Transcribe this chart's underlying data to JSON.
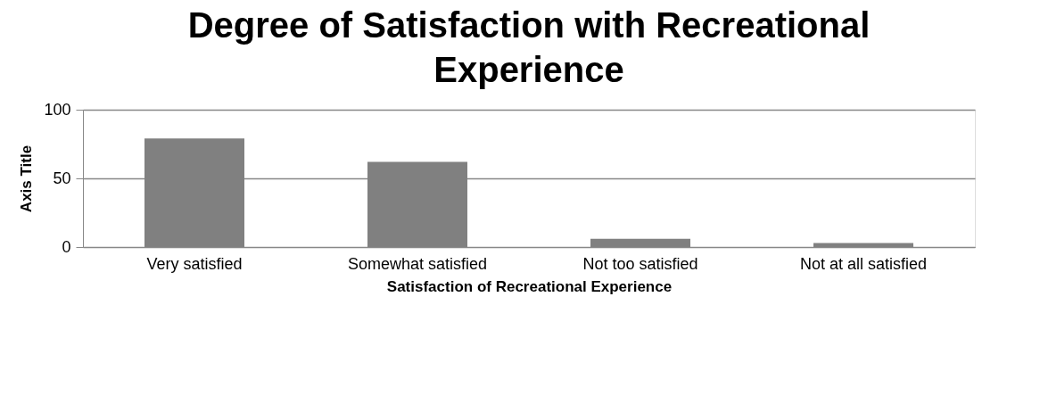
{
  "chart_data": {
    "type": "bar",
    "title": [
      "Degree of Satisfaction with Recreational",
      "Experience"
    ],
    "xlabel": "Satisfaction of Recreational Experience",
    "ylabel": "Axis Title",
    "categories": [
      "Very satisfied",
      "Somewhat satisfied",
      "Not too satisfied",
      "Not at all satisfied"
    ],
    "values": [
      79,
      62,
      6,
      3
    ],
    "color": "#808080",
    "ylim": [
      0,
      100
    ],
    "yticks": [
      0,
      50,
      100
    ],
    "grid": "y"
  }
}
